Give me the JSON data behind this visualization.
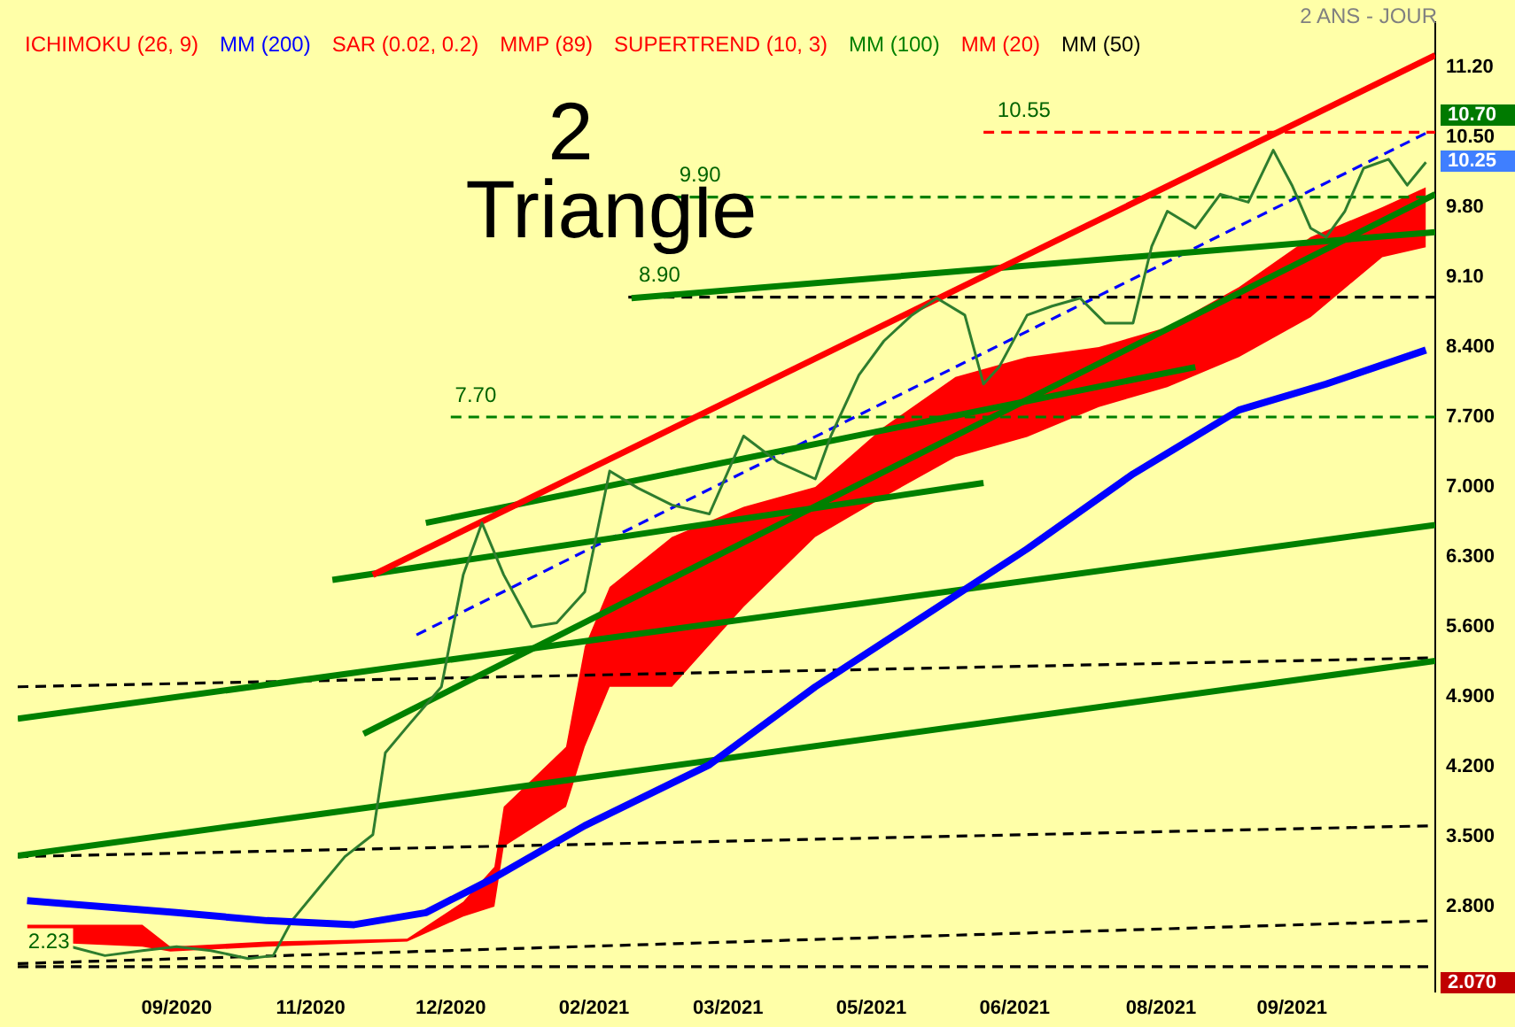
{
  "chart_data": {
    "type": "line",
    "subtitle": "2 ANS - JOUR",
    "legend": "top left",
    "xlim": [
      "2020-07-31",
      "2021-10-29"
    ],
    "xticks": [
      {
        "value": "2020-09-20",
        "label": "09/2020"
      },
      {
        "value": "2020-11-02",
        "label": "11/2020"
      },
      {
        "value": "2020-12-17",
        "label": "12/2020"
      },
      {
        "value": "2021-02-01",
        "label": "02/2021"
      },
      {
        "value": "2021-03-16",
        "label": "03/2021"
      },
      {
        "value": "2021-05-01",
        "label": "05/2021"
      },
      {
        "value": "2021-06-16",
        "label": "06/2021"
      },
      {
        "value": "2021-08-02",
        "label": "08/2021"
      },
      {
        "value": "2021-09-13",
        "label": "09/2021"
      }
    ],
    "ylim": [
      1.95,
      11.65
    ],
    "yticks": [
      {
        "value": 11.2,
        "label": "11.20"
      },
      {
        "value": 10.5,
        "label": "10.50"
      },
      {
        "value": 9.8,
        "label": "9.80"
      },
      {
        "value": 9.1,
        "label": "9.10"
      },
      {
        "value": 8.4,
        "label": "8.400"
      },
      {
        "value": 7.7,
        "label": "7.700"
      },
      {
        "value": 7.0,
        "label": "7.000"
      },
      {
        "value": 6.3,
        "label": "6.300"
      },
      {
        "value": 5.6,
        "label": "5.600"
      },
      {
        "value": 4.9,
        "label": "4.900"
      },
      {
        "value": 4.2,
        "label": "4.200"
      },
      {
        "value": 3.5,
        "label": "3.500"
      },
      {
        "value": 2.8,
        "label": "2.800"
      }
    ],
    "grid": false,
    "series": [
      {
        "name": "ICHIMOKU (26, 9)",
        "type": "area",
        "color": "#ff0000",
        "x": [
          "2020-08-03",
          "2020-09-09",
          "2020-09-18",
          "2020-10-19",
          "2020-12-03",
          "2020-12-21",
          "2020-12-31",
          "2021-01-03",
          "2021-01-23",
          "2021-01-29",
          "2021-02-06",
          "2021-02-26",
          "2021-03-21",
          "2021-04-13",
          "2021-05-05",
          "2021-05-28",
          "2021-06-20",
          "2021-07-13",
          "2021-08-04",
          "2021-08-27",
          "2021-09-19",
          "2021-10-12",
          "2021-10-26"
        ],
        "values": [
          null,
          null,
          null,
          null,
          null,
          null,
          null,
          null,
          null,
          null,
          null,
          null,
          null,
          null,
          null,
          null,
          null,
          null,
          null,
          null,
          null,
          null,
          null
        ],
        "lower": [
          2.45,
          2.4,
          2.35,
          2.4,
          2.45,
          2.7,
          2.8,
          3.4,
          3.8,
          4.4,
          5.0,
          5.0,
          5.8,
          6.5,
          6.9,
          7.3,
          7.5,
          7.8,
          8.0,
          8.3,
          8.7,
          9.3,
          9.4
        ],
        "upper": [
          2.62,
          2.62,
          2.4,
          2.45,
          2.48,
          2.85,
          3.2,
          3.8,
          4.4,
          5.4,
          6.0,
          6.5,
          6.8,
          7.0,
          7.6,
          8.1,
          8.3,
          8.4,
          8.6,
          9.0,
          9.5,
          9.8,
          10.0
        ]
      },
      {
        "name": "MM (200)",
        "color": "#0000ff",
        "x": [
          "2020-08-03",
          "2020-09-20",
          "2020-10-19",
          "2020-11-16",
          "2020-12-09",
          "2020-12-31",
          "2021-01-29",
          "2021-03-10",
          "2021-04-13",
          "2021-05-17",
          "2021-06-20",
          "2021-07-24",
          "2021-08-27",
          "2021-09-24",
          "2021-10-26"
        ],
        "values": [
          2.86,
          2.74,
          2.66,
          2.62,
          2.74,
          3.09,
          3.61,
          4.22,
          5.0,
          5.69,
          6.38,
          7.13,
          7.77,
          8.03,
          8.37
        ]
      },
      {
        "name": "SAR (0.02, 0.2)",
        "color": "#ff0000"
      },
      {
        "name": "MMP (89)",
        "color": "#ff0000"
      },
      {
        "name": "SUPERTREND (10, 3)",
        "color": "#ff0000"
      },
      {
        "name": "MM (100)",
        "color": "#008000"
      },
      {
        "name": "MM (20)",
        "color": "#ff0000"
      },
      {
        "name": "MM (50)",
        "color": "#000000"
      },
      {
        "color": "#2e7d2e",
        "x": [
          "2020-08-03",
          "2020-08-17",
          "2020-08-28",
          "2020-09-09",
          "2020-09-20",
          "2020-10-01",
          "2020-10-13",
          "2020-10-21",
          "2020-10-27",
          "2020-11-05",
          "2020-11-13",
          "2020-11-22",
          "2020-11-26",
          "2020-12-03",
          "2020-12-14",
          "2020-12-21",
          "2020-12-27",
          "2021-01-03",
          "2021-01-12",
          "2021-01-20",
          "2021-01-29",
          "2021-02-06",
          "2021-02-15",
          "2021-02-26",
          "2021-03-10",
          "2021-03-21",
          "2021-04-01",
          "2021-04-13",
          "2021-04-18",
          "2021-04-27",
          "2021-05-05",
          "2021-05-14",
          "2021-05-22",
          "2021-05-31",
          "2021-06-06",
          "2021-06-11",
          "2021-06-20",
          "2021-06-28",
          "2021-07-07",
          "2021-07-15",
          "2021-07-24",
          "2021-07-30",
          "2021-08-04",
          "2021-08-13",
          "2021-08-21",
          "2021-08-30",
          "2021-09-07",
          "2021-09-13",
          "2021-09-19",
          "2021-09-24",
          "2021-09-30",
          "2021-10-06",
          "2021-10-14",
          "2021-10-20",
          "2021-10-26"
        ],
        "values": [
          2.48,
          2.4,
          2.31,
          2.36,
          2.4,
          2.36,
          2.28,
          2.31,
          2.66,
          3.0,
          3.3,
          3.52,
          4.34,
          4.6,
          5.0,
          6.12,
          6.64,
          6.12,
          5.6,
          5.64,
          5.95,
          7.16,
          6.99,
          6.82,
          6.73,
          7.51,
          7.25,
          7.08,
          7.51,
          8.12,
          8.46,
          8.72,
          8.89,
          8.72,
          8.03,
          8.2,
          8.72,
          8.81,
          8.89,
          8.64,
          8.64,
          9.41,
          9.76,
          9.59,
          9.93,
          9.85,
          10.37,
          10.02,
          9.59,
          9.5,
          9.76,
          10.19,
          10.28,
          10.02,
          10.25
        ]
      },
      {
        "color": "#ff0000",
        "x": [
          "2020-11-22",
          "2021-10-29"
        ],
        "values": [
          6.12,
          11.32
        ]
      },
      {
        "color": "#008000",
        "x": [
          "2020-11-19",
          "2021-10-29"
        ],
        "values": [
          4.53,
          9.93
        ]
      },
      {
        "color": "#008000",
        "x": [
          "2020-07-31",
          "2021-10-29"
        ],
        "values": [
          4.68,
          6.62
        ]
      },
      {
        "color": "#008000",
        "x": [
          "2020-07-31",
          "2021-10-29"
        ],
        "values": [
          3.31,
          5.26
        ]
      },
      {
        "color": "#008000",
        "x": [
          "2020-11-09",
          "2021-06-06"
        ],
        "values": [
          6.07,
          7.04
        ]
      },
      {
        "color": "#008000",
        "x": [
          "2020-12-09",
          "2021-08-13"
        ],
        "values": [
          6.64,
          8.2
        ]
      },
      {
        "color": "#008000",
        "x": [
          "2021-02-13",
          "2021-10-29"
        ],
        "values": [
          8.89,
          9.55
        ]
      },
      {
        "color": "#0000ff",
        "line_style": "dashed",
        "x": [
          "2020-12-06",
          "2021-10-26"
        ],
        "values": [
          5.52,
          10.54
        ]
      },
      {
        "color": "#000000",
        "line_style": "dashed",
        "x": [
          "2020-07-31",
          "2021-10-29"
        ],
        "values": [
          5.0,
          5.29
        ]
      },
      {
        "color": "#000000",
        "line_style": "dashed",
        "x": [
          "2020-07-31",
          "2021-10-29"
        ],
        "values": [
          3.3,
          3.61
        ]
      },
      {
        "color": "#000000",
        "line_style": "dashed",
        "x": [
          "2020-07-31",
          "2021-10-29"
        ],
        "values": [
          2.23,
          2.66
        ]
      },
      {
        "color": "#ff0000",
        "line_style": "dashed",
        "x": [
          "2021-06-06",
          "2021-10-29"
        ],
        "values": [
          10.55,
          10.55
        ]
      },
      {
        "color": "#008000",
        "line_style": "dashed",
        "x": [
          "2021-02-26",
          "2021-10-29"
        ],
        "values": [
          9.9,
          9.9
        ]
      },
      {
        "color": "#000000",
        "line_style": "dashed",
        "x": [
          "2021-02-12",
          "2021-10-29"
        ],
        "values": [
          8.9,
          8.9
        ]
      },
      {
        "color": "#008000",
        "line_style": "dashed",
        "x": [
          "2020-12-17",
          "2021-10-29"
        ],
        "values": [
          7.7,
          7.7
        ]
      }
    ],
    "ref_lines": [
      {
        "axis": "y",
        "value": 2.2,
        "color": "#000000",
        "line_style": "dashed"
      }
    ],
    "annotations": [
      "2",
      "Triangle",
      {
        "text": "10.55",
        "x": "2021-06-19",
        "y": 10.55
      },
      {
        "text": "9.90",
        "x": "2021-03-07",
        "y": 9.9
      },
      {
        "text": "8.90",
        "x": "2021-02-22",
        "y": 8.9
      },
      {
        "text": "7.70",
        "x": "2020-12-25",
        "y": 7.7
      },
      {
        "text": "2.23",
        "x": "2020-08-10",
        "y": 2.23
      },
      "10.70",
      "10.25",
      "2.070"
    ]
  }
}
